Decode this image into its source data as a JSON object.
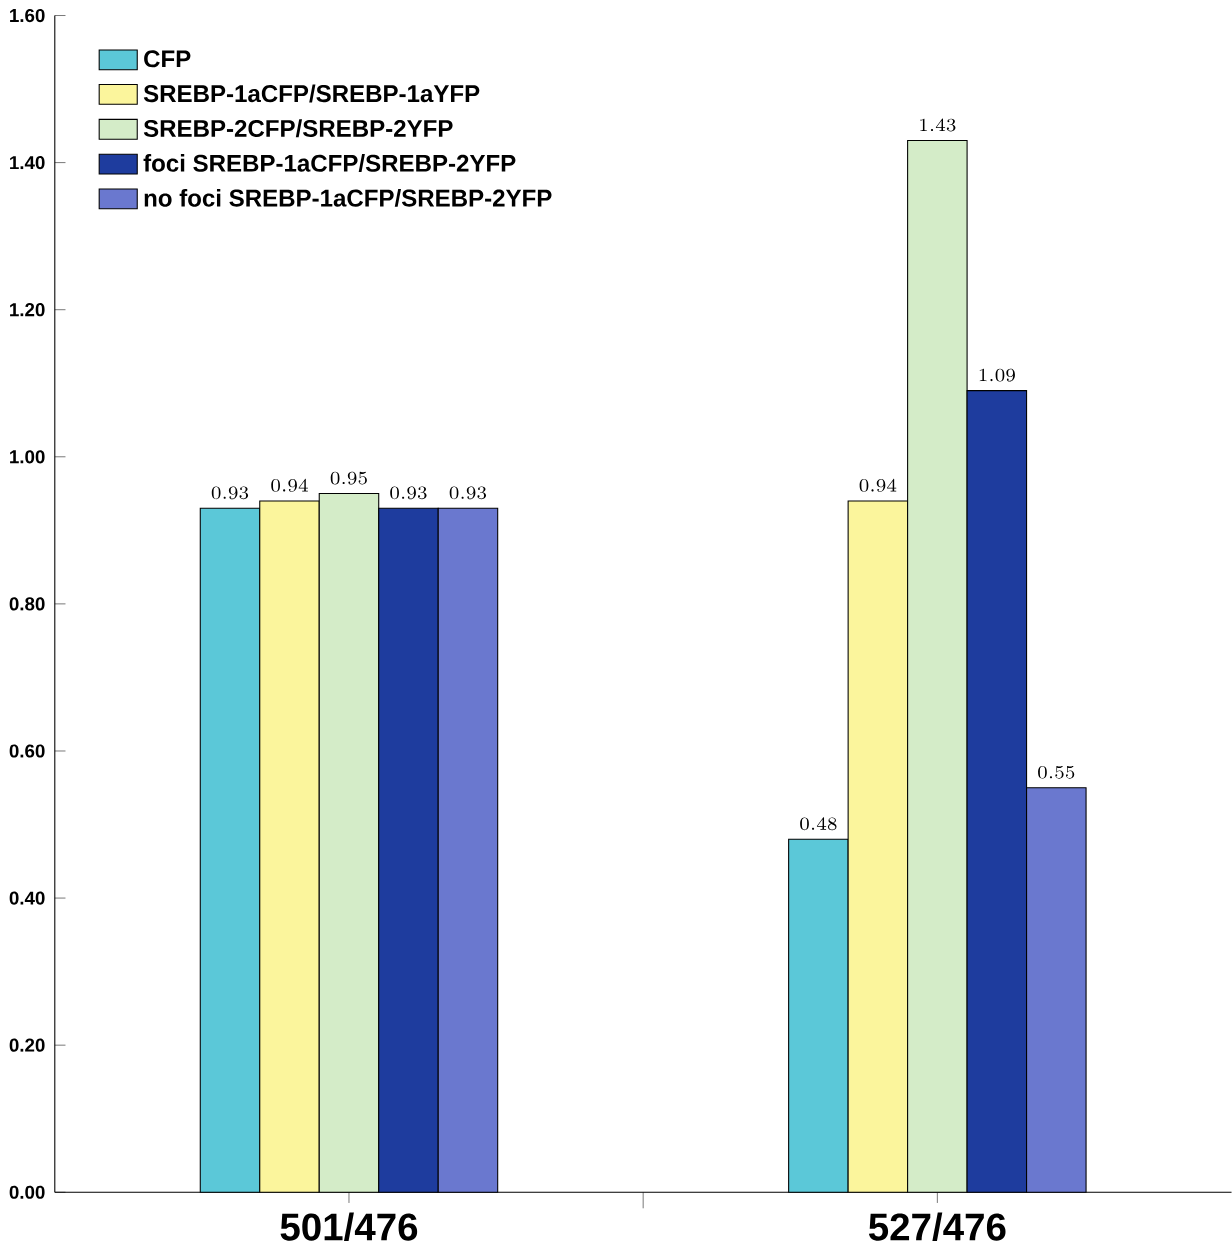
{
  "chart_data": {
    "type": "bar",
    "categories": [
      "501/476",
      "527/476"
    ],
    "series": [
      {
        "name": "CFP",
        "color": "#5bc8d8",
        "values": [
          0.93,
          0.48
        ]
      },
      {
        "name": "SREBP-1aCFP/SREBP-1aYFP",
        "color": "#fbf59c",
        "values": [
          0.94,
          0.94
        ]
      },
      {
        "name": "SREBP-2CFP/SREBP-2YFP",
        "color": "#d4ecc8",
        "values": [
          0.95,
          1.43
        ]
      },
      {
        "name": "foci SREBP-1aCFP/SREBP-2YFP",
        "color": "#1e3c9e",
        "values": [
          0.93,
          1.09
        ]
      },
      {
        "name": "no foci SREBP-1aCFP/SREBP-2YFP",
        "color": "#6a78cf",
        "values": [
          0.93,
          0.55
        ]
      }
    ],
    "ylim": [
      0,
      1.6
    ],
    "yticks": [
      {
        "value": 0,
        "label": "0.00"
      },
      {
        "value": 0.2,
        "label": "0.20"
      },
      {
        "value": 0.4,
        "label": "0.40"
      },
      {
        "value": 0.6,
        "label": "0.60"
      },
      {
        "value": 0.8,
        "label": "0.80"
      },
      {
        "value": 1.0,
        "label": "1.00"
      },
      {
        "value": 1.2,
        "label": "1.20"
      },
      {
        "value": 1.4,
        "label": "1.40"
      },
      {
        "value": 1.6,
        "label": "1.60"
      }
    ],
    "data_labels": true,
    "legend": "top left",
    "grid": false
  }
}
